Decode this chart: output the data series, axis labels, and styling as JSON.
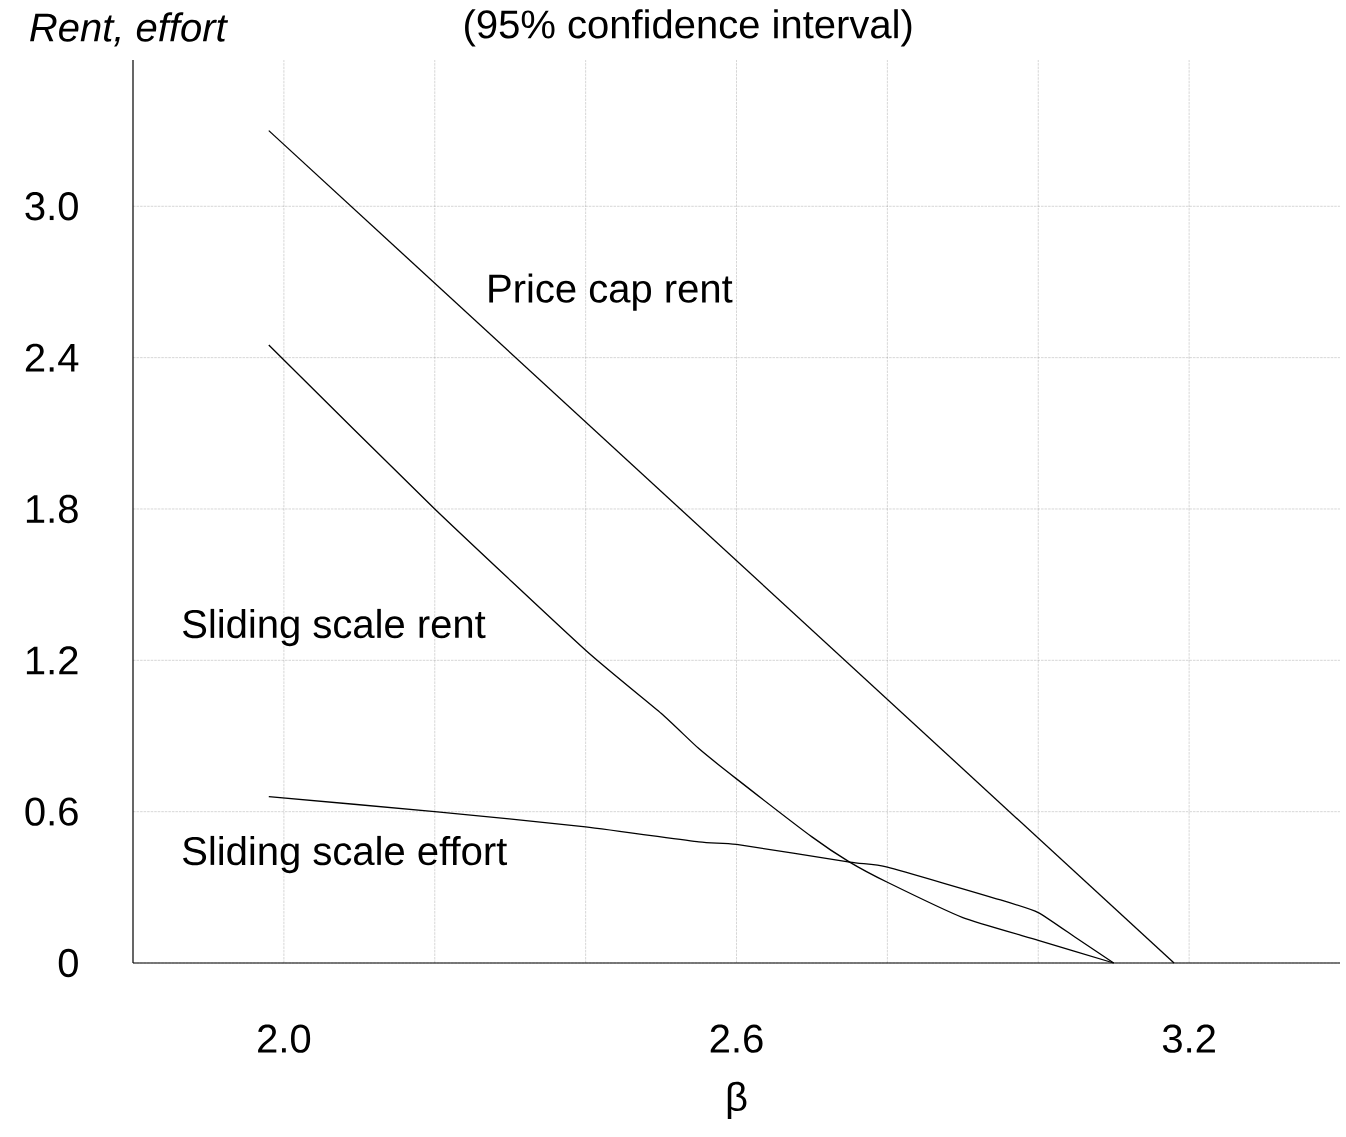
{
  "chart_data": {
    "type": "line",
    "title": "(95% confidence interval)",
    "xlabel": "β",
    "ylabel": "*Rent, effort*",
    "xlim": [
      1.8,
      3.4
    ],
    "ylim": [
      0,
      3.58
    ],
    "xticks": [
      {
        "value": 2.0,
        "label": "2.0"
      },
      {
        "value": 2.2,
        "label": null
      },
      {
        "value": 2.4,
        "label": null
      },
      2.6,
      {
        "value": 2.8,
        "label": null
      },
      {
        "value": 3.0,
        "label": null
      },
      3.2
    ],
    "yticks": [
      0,
      0.6,
      1.2,
      1.8,
      2.4,
      {
        "value": 3.0,
        "label": "3.0"
      }
    ],
    "grid": true,
    "marker": "none",
    "line_style": "solid",
    "series": [
      {
        "name": "Price cap rent",
        "color": "#000000",
        "x": [
          1.98,
          3.18
        ],
        "values": [
          3.3,
          0
        ]
      },
      {
        "name": "Sliding scale rent",
        "color": "#000000",
        "x": [
          1.98,
          2.2,
          2.4,
          2.5,
          2.55,
          2.6,
          2.7,
          2.75,
          2.8,
          2.9,
          3.0,
          3.1
        ],
        "values": [
          2.45,
          1.8,
          1.24,
          0.99,
          0.85,
          0.73,
          0.5,
          0.4,
          0.32,
          0.18,
          0.09,
          0
        ]
      },
      {
        "name": "Sliding scale effort",
        "color": "#000000",
        "x": [
          1.98,
          2.2,
          2.4,
          2.55,
          2.6,
          2.75,
          2.8,
          2.95,
          3.0,
          3.05,
          3.1
        ],
        "values": [
          0.66,
          0.6,
          0.54,
          0.48,
          0.47,
          0.4,
          0.38,
          0.25,
          0.2,
          0.1,
          0
        ]
      }
    ]
  }
}
